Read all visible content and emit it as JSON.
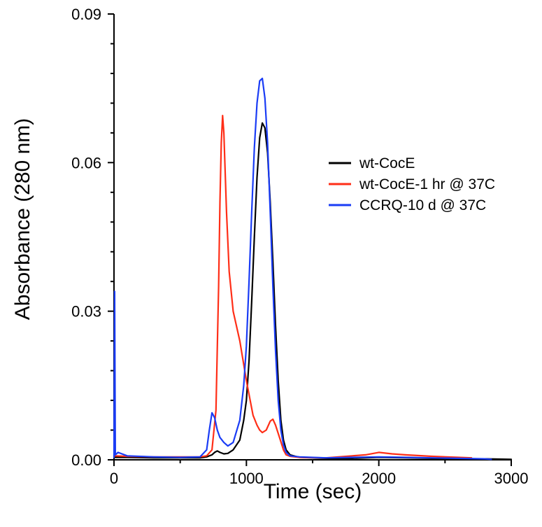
{
  "chart_data": {
    "type": "line",
    "title": "",
    "xlabel": "Time (sec)",
    "ylabel": "Absorbance (280 nm)",
    "xlim": [
      0,
      3000
    ],
    "ylim": [
      0,
      0.09
    ],
    "x_ticks": [
      0,
      1000,
      2000,
      3000
    ],
    "x_tick_labels": [
      "0",
      "1000",
      "2000",
      "3000"
    ],
    "y_ticks": [
      0,
      0.03,
      0.06,
      0.09
    ],
    "y_tick_labels": [
      "0.00",
      "0.03",
      "0.06",
      "0.09"
    ],
    "grid": false,
    "legend_position": "right",
    "series": [
      {
        "name": "wt-CocE",
        "color": "#000000",
        "x": [
          0,
          100,
          300,
          500,
          650,
          700,
          740,
          760,
          780,
          800,
          830,
          860,
          900,
          950,
          980,
          1000,
          1020,
          1040,
          1060,
          1080,
          1100,
          1120,
          1140,
          1160,
          1180,
          1200,
          1220,
          1240,
          1260,
          1280,
          1300,
          1330,
          1400,
          1600,
          1800,
          2000,
          2200,
          2400,
          2600,
          2800,
          3000
        ],
        "y": [
          0.0005,
          0.0005,
          0.0004,
          0.0004,
          0.0004,
          0.0006,
          0.001,
          0.0015,
          0.0018,
          0.0015,
          0.0012,
          0.0013,
          0.002,
          0.004,
          0.008,
          0.012,
          0.02,
          0.032,
          0.045,
          0.057,
          0.065,
          0.068,
          0.067,
          0.062,
          0.052,
          0.04,
          0.027,
          0.016,
          0.008,
          0.004,
          0.002,
          0.001,
          0.0005,
          0.0003,
          0.0003,
          0.0005,
          0.0004,
          0.0003,
          0.0002,
          0.0002,
          0.0001
        ]
      },
      {
        "name": "wt-CocE-1 hr @ 37C",
        "color": "#ff2e17",
        "x": [
          0,
          100,
          300,
          500,
          650,
          700,
          740,
          770,
          790,
          800,
          810,
          820,
          830,
          850,
          870,
          900,
          950,
          1000,
          1050,
          1080,
          1100,
          1120,
          1150,
          1180,
          1200,
          1220,
          1250,
          1280,
          1300,
          1330,
          1400,
          1600,
          1800,
          1900,
          2000,
          2100,
          2200,
          2400,
          2600,
          2700
        ],
        "y": [
          0.0008,
          0.0007,
          0.0006,
          0.0006,
          0.0006,
          0.0008,
          0.002,
          0.01,
          0.035,
          0.052,
          0.064,
          0.0695,
          0.066,
          0.05,
          0.038,
          0.03,
          0.024,
          0.016,
          0.009,
          0.007,
          0.006,
          0.0055,
          0.006,
          0.0078,
          0.0082,
          0.007,
          0.0045,
          0.002,
          0.001,
          0.0007,
          0.0005,
          0.0004,
          0.0008,
          0.001,
          0.0015,
          0.0012,
          0.001,
          0.0007,
          0.0005,
          0.0004
        ]
      },
      {
        "name": "CCRQ-10 d @ 37C",
        "color": "#1a3cf5",
        "x": [
          0,
          5,
          10,
          30,
          100,
          300,
          500,
          650,
          700,
          720,
          740,
          760,
          780,
          800,
          830,
          860,
          900,
          950,
          980,
          1000,
          1020,
          1040,
          1060,
          1080,
          1100,
          1120,
          1140,
          1160,
          1180,
          1200,
          1220,
          1240,
          1260,
          1280,
          1300,
          1330,
          1400,
          1600,
          1800,
          2000,
          2200,
          2400,
          2600,
          2800,
          2850
        ],
        "y": [
          0.0005,
          0.034,
          0.001,
          0.0015,
          0.0008,
          0.0006,
          0.0005,
          0.0006,
          0.002,
          0.006,
          0.0095,
          0.0085,
          0.006,
          0.0045,
          0.0035,
          0.0028,
          0.0035,
          0.008,
          0.015,
          0.023,
          0.036,
          0.05,
          0.063,
          0.072,
          0.0765,
          0.077,
          0.073,
          0.064,
          0.05,
          0.035,
          0.022,
          0.012,
          0.006,
          0.003,
          0.0015,
          0.0008,
          0.0006,
          0.0004,
          0.0005,
          0.0006,
          0.0005,
          0.0004,
          0.0003,
          0.0002,
          0.0001
        ]
      }
    ]
  }
}
